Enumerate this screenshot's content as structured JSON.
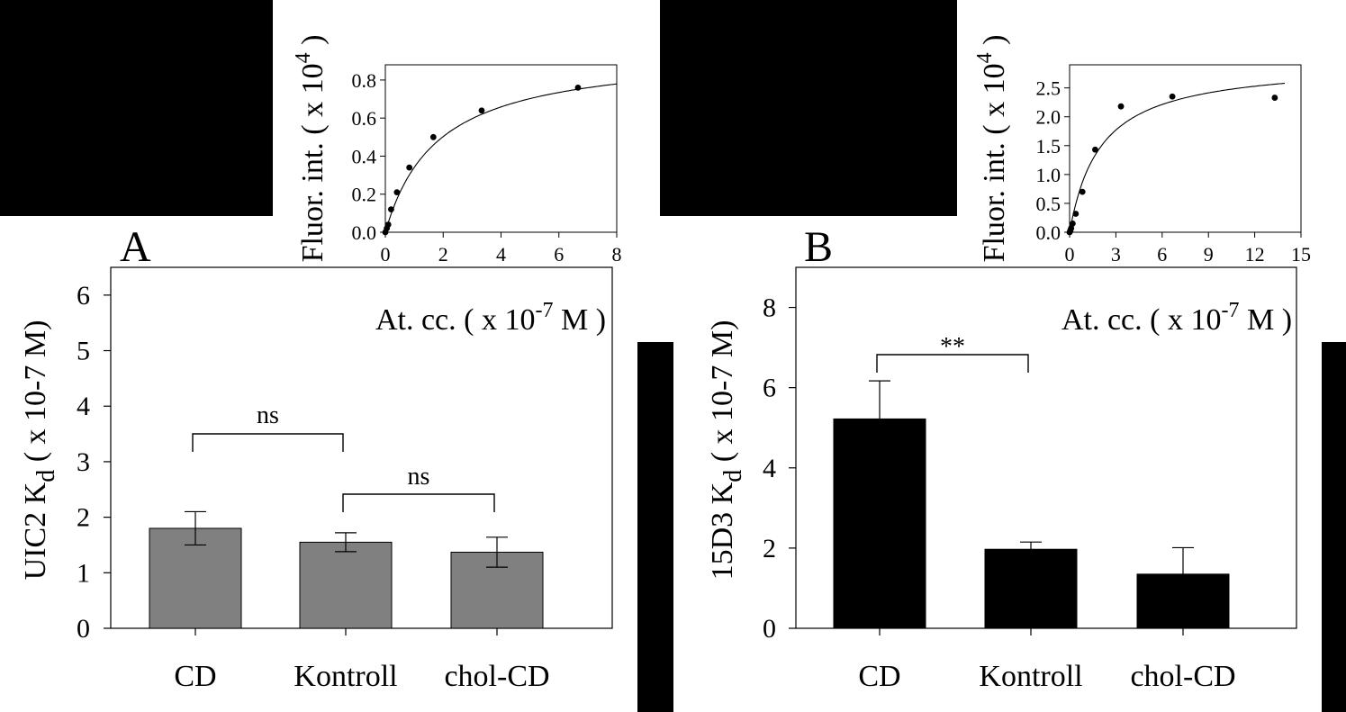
{
  "chart_data": [
    {
      "panel": "A",
      "type": "bar",
      "categories": [
        "CD",
        "Kontroll",
        "chol-CD"
      ],
      "values": [
        1.8,
        1.55,
        1.37
      ],
      "errors": [
        0.3,
        0.17,
        0.27
      ],
      "ylabel_main": "UIC2 K",
      "ylabel_sub": "d",
      "ylabel_unit": "( x 10-7 M)",
      "ylim": [
        0,
        6.5
      ],
      "yticks": [
        0,
        1,
        2,
        3,
        4,
        5,
        6
      ],
      "bar_color": "#808080",
      "significance": [
        {
          "from": 0,
          "to": 1,
          "label": "ns"
        },
        {
          "from": 1,
          "to": 2,
          "label": "ns"
        }
      ],
      "inset": {
        "type": "scatter",
        "x": [
          0,
          0.05,
          0.1,
          0.2,
          0.4,
          0.83,
          1.66,
          3.33,
          6.66
        ],
        "y": [
          0.0,
          0.02,
          0.04,
          0.12,
          0.21,
          0.34,
          0.5,
          0.64,
          0.76
        ],
        "fit": {
          "model": "hyperbolic",
          "bmax": 0.955,
          "kd": 1.8
        },
        "xlim": [
          0,
          8
        ],
        "xticks": [
          0,
          2,
          4,
          6,
          8
        ],
        "ylim": [
          0,
          0.88
        ],
        "yticks": [
          "0.0",
          "0.2",
          "0.4",
          "0.6",
          "0.8"
        ],
        "xlabel": "At. cc. ( x 10",
        "xlabel_exp": "-7",
        "xlabel_end": " M )",
        "ylabel": "Fluor. int. ( x 10",
        "ylabel_exp": "4",
        "ylabel_end": " )"
      }
    },
    {
      "panel": "B",
      "type": "bar",
      "categories": [
        "CD",
        "Kontroll",
        "chol-CD"
      ],
      "values": [
        5.22,
        1.97,
        1.35
      ],
      "errors": [
        0.95,
        0.18,
        0.66
      ],
      "ylabel_main": "15D3  K",
      "ylabel_sub": "d",
      "ylabel_unit": "( x 10-7 M)",
      "ylim": [
        0,
        9
      ],
      "yticks": [
        0,
        2,
        4,
        6,
        8
      ],
      "bar_color": "#000000",
      "significance": [
        {
          "from": 0,
          "to": 1,
          "label": "**"
        }
      ],
      "inset": {
        "type": "scatter",
        "x": [
          0,
          0.05,
          0.1,
          0.2,
          0.4,
          0.83,
          1.66,
          3.33,
          6.66,
          13.3
        ],
        "y": [
          0.0,
          0.03,
          0.07,
          0.15,
          0.32,
          0.7,
          1.43,
          2.18,
          2.35,
          2.33
        ],
        "fit": {
          "model": "hyperbolic",
          "bmax": 2.95,
          "kd": 2.0
        },
        "xlim": [
          0,
          15
        ],
        "xticks": [
          0,
          3,
          6,
          9,
          12,
          15
        ],
        "ylim": [
          0,
          2.9
        ],
        "yticks": [
          "0.0",
          "0.5",
          "1.0",
          "1.5",
          "2.0",
          "2.5"
        ],
        "xlabel": "At. cc. ( x 10",
        "xlabel_exp": "-7",
        "xlabel_end": " M )",
        "ylabel": "Fluor. int. ( x 10",
        "ylabel_exp": "4",
        "ylabel_end": " )"
      }
    }
  ]
}
